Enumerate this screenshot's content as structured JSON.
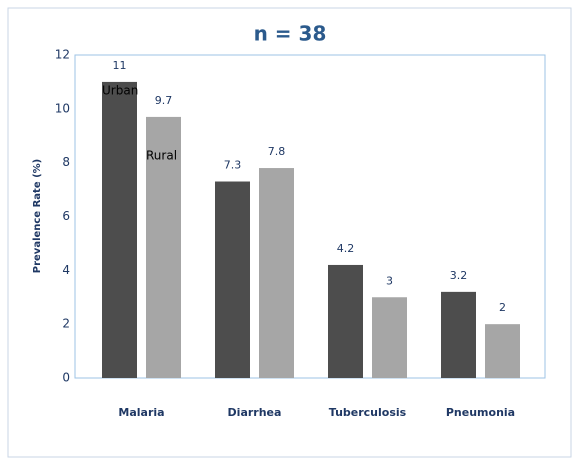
{
  "chart_data": {
    "type": "bar",
    "title": "n = 38",
    "y_label": "Prevalence Rate (%)",
    "categories": [
      "Malaria",
      "Diarrhea",
      "Tuberculosis",
      "Pneumonia"
    ],
    "series": [
      {
        "name": "Urban",
        "color": "#4d4d4d",
        "values": [
          11,
          7.3,
          4.2,
          3.2
        ]
      },
      {
        "name": "Rural",
        "color": "#a6a6a6",
        "values": [
          9.7,
          7.8,
          3,
          2
        ]
      }
    ],
    "ylim": [
      0,
      12
    ],
    "yticks": [
      0,
      2,
      4,
      6,
      8,
      10,
      12
    ]
  }
}
